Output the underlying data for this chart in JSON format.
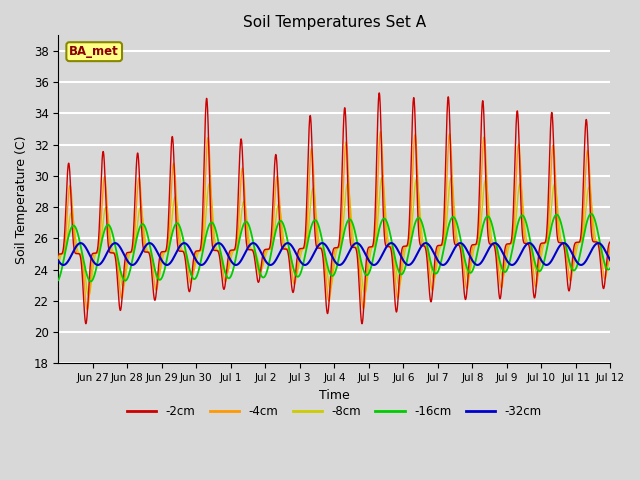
{
  "title": "Soil Temperatures Set A",
  "xlabel": "Time",
  "ylabel": "Soil Temperature (C)",
  "ylim": [
    18,
    39
  ],
  "yticks": [
    18,
    20,
    22,
    24,
    26,
    28,
    30,
    32,
    34,
    36,
    38
  ],
  "colors": {
    "-2cm": "#cc0000",
    "-4cm": "#ff9900",
    "-8cm": "#cccc00",
    "-16cm": "#00cc00",
    "-32cm": "#0000cc"
  },
  "legend_label": "BA_met",
  "background_color": "#d8d8d8",
  "plot_bg_color": "#d8d8d8",
  "grid_color": "#ffffff"
}
